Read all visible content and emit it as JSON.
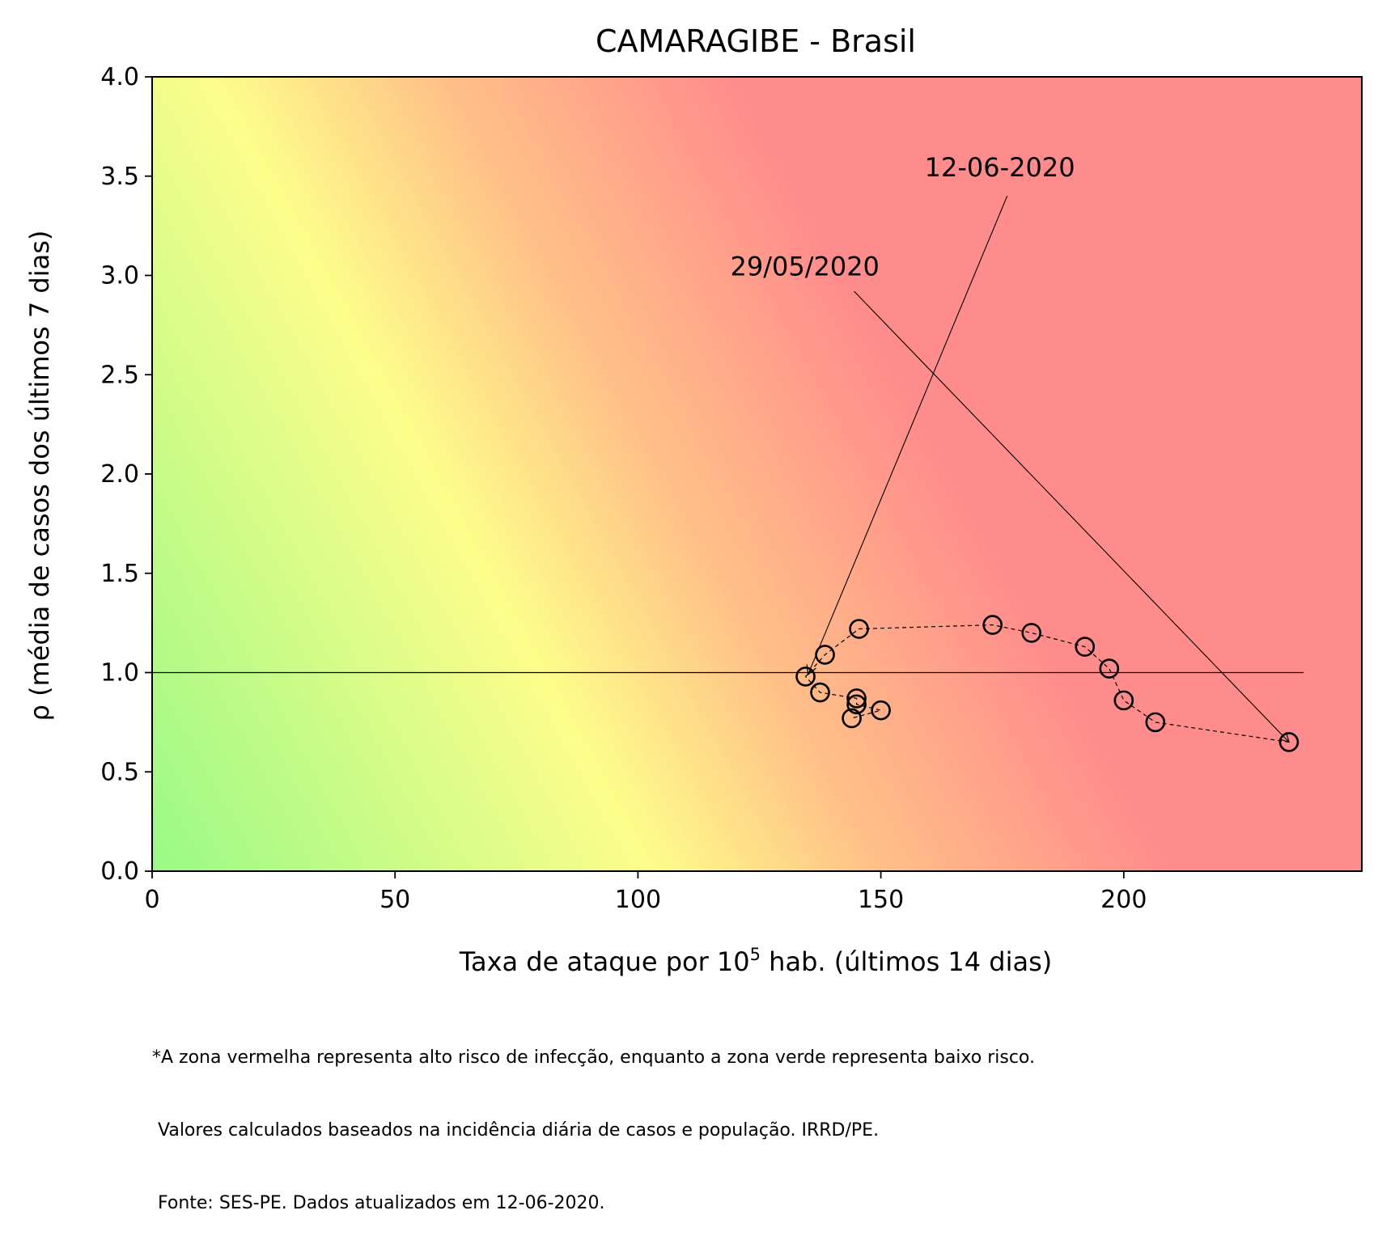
{
  "chart_data": {
    "type": "scatter",
    "title": "CAMARAGIBE - Brasil",
    "xlabel_prefix": "Taxa de ataque por 10",
    "xlabel_superscript": "5",
    "xlabel_suffix": " hab. (últimos 14 dias)",
    "ylabel": "ρ (média de casos dos últimos 7 dias)",
    "xlim": [
      0,
      249
    ],
    "ylim": [
      0,
      4.0
    ],
    "x_ticks": [
      0,
      50,
      100,
      150,
      200
    ],
    "y_ticks": [
      0.0,
      0.5,
      1.0,
      1.5,
      2.0,
      2.5,
      3.0,
      3.5,
      4.0
    ],
    "y_tick_labels": [
      "0.0",
      "0.5",
      "1.0",
      "1.5",
      "2.0",
      "2.5",
      "3.0",
      "3.5",
      "4.0"
    ],
    "grid": false,
    "reference_line": {
      "y": 1.0,
      "x_range": [
        0,
        237
      ]
    },
    "series": [
      {
        "points": [
          {
            "x": 234,
            "y": 0.65
          },
          {
            "x": 206.5,
            "y": 0.75
          },
          {
            "x": 200,
            "y": 0.86
          },
          {
            "x": 197,
            "y": 1.02
          },
          {
            "x": 192,
            "y": 1.13
          },
          {
            "x": 181,
            "y": 1.2
          },
          {
            "x": 173,
            "y": 1.24
          },
          {
            "x": 145.5,
            "y": 1.22
          },
          {
            "x": 138.5,
            "y": 1.09
          },
          {
            "x": 134.5,
            "y": 0.98
          },
          {
            "x": 137.5,
            "y": 0.9
          },
          {
            "x": 145,
            "y": 0.87
          },
          {
            "x": 145,
            "y": 0.84
          },
          {
            "x": 150,
            "y": 0.81
          },
          {
            "x": 144,
            "y": 0.77
          }
        ]
      }
    ],
    "annotations": [
      {
        "text": "29/05/2020",
        "text_x": 119,
        "text_y": 3.0,
        "line_from": {
          "x": 144.5,
          "y": 2.92
        },
        "arrow_to": {
          "x": 234,
          "y": 0.65
        }
      },
      {
        "text": "12-06-2020",
        "text_x": 159,
        "text_y": 3.5,
        "line_from": {
          "x": 176,
          "y": 3.4
        },
        "arrow_to": {
          "x": 135,
          "y": 0.99
        }
      }
    ],
    "background": {
      "description_colors": {
        "low": "#96f986",
        "mid": "#fdfd8a",
        "high": "#ff8c8c"
      }
    }
  },
  "footnote": {
    "line1": "*A zona vermelha representa alto risco de infecção, enquanto a zona verde representa baixo risco.",
    "line2": " Valores calculados baseados na incidência diária de casos e população. IRRD/PE.",
    "line3": " Fonte: SES-PE. Dados atualizados em 12-06-2020."
  }
}
